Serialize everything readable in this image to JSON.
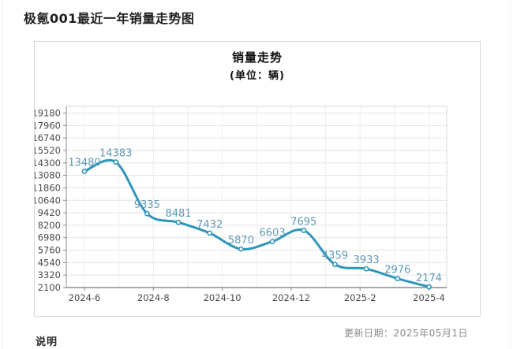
{
  "header": {
    "title": "极氪001最近一年销量走势图"
  },
  "chart_data": {
    "type": "line",
    "title": "销量走势",
    "subtitle": "(单位：辆)",
    "values": [
      13480,
      14383,
      9335,
      8481,
      7432,
      5870,
      6603,
      7695,
      4359,
      3933,
      2976,
      2174
    ],
    "x_tick_labels": [
      "2024-6",
      "2024-8",
      "2024-10",
      "2024-12",
      "2025-2",
      "2025-4"
    ],
    "y_ticks": [
      2100,
      3320,
      4540,
      5760,
      6980,
      8200,
      9420,
      10640,
      11860,
      13080,
      14300,
      15520,
      16740,
      17960,
      19180
    ],
    "ylim": [
      2100,
      19180
    ],
    "grid": true,
    "legend": "none",
    "colors": {
      "line": "#2e96b9",
      "point_fill": "#ffffff",
      "data_label": "#5f9ab6",
      "axis": "#8c8c8c",
      "grid_h": "#e4e4e4",
      "grid_v": "#ededed",
      "tick_text": "#4a4a4a",
      "plot_border": "#dadada"
    }
  },
  "footer": {
    "updated": "更新日期：2025年05月1日",
    "note": "说明"
  }
}
